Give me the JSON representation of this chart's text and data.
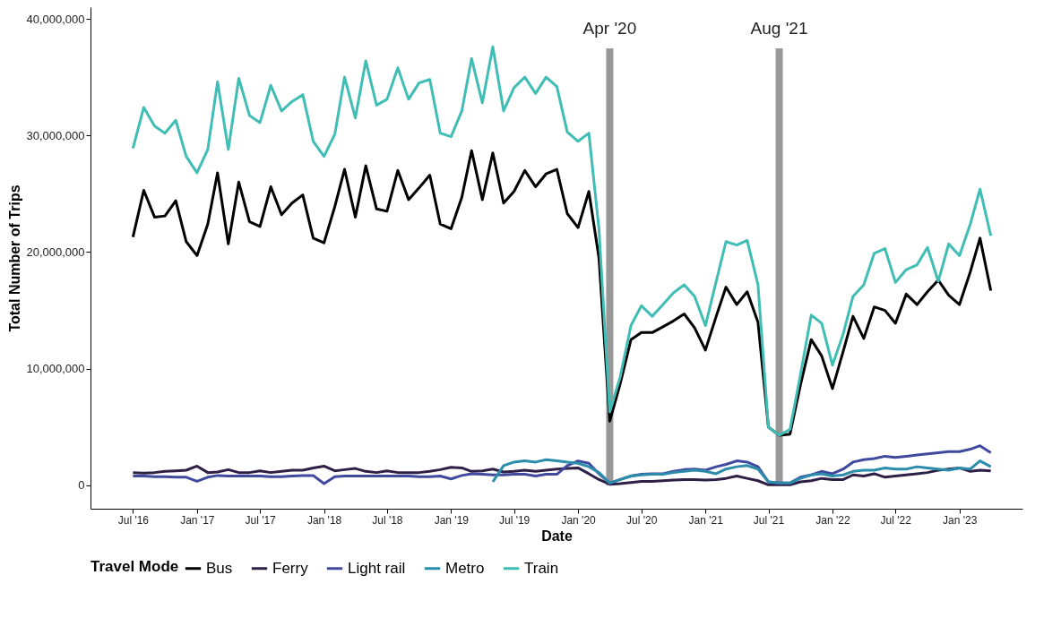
{
  "chart_data": {
    "type": "line",
    "xlabel": "Date",
    "ylabel": "Total Number of Trips",
    "legend_title": "Travel Mode",
    "legend": "bottom",
    "grid": false,
    "x": [
      "2016-07",
      "2016-08",
      "2016-09",
      "2016-10",
      "2016-11",
      "2016-12",
      "2017-01",
      "2017-02",
      "2017-03",
      "2017-04",
      "2017-05",
      "2017-06",
      "2017-07",
      "2017-08",
      "2017-09",
      "2017-10",
      "2017-11",
      "2017-12",
      "2018-01",
      "2018-02",
      "2018-03",
      "2018-04",
      "2018-05",
      "2018-06",
      "2018-07",
      "2018-08",
      "2018-09",
      "2018-10",
      "2018-11",
      "2018-12",
      "2019-01",
      "2019-02",
      "2019-03",
      "2019-04",
      "2019-05",
      "2019-06",
      "2019-07",
      "2019-08",
      "2019-09",
      "2019-10",
      "2019-11",
      "2019-12",
      "2020-01",
      "2020-02",
      "2020-03",
      "2020-04",
      "2020-05",
      "2020-06",
      "2020-07",
      "2020-08",
      "2020-09",
      "2020-10",
      "2020-11",
      "2020-12",
      "2021-01",
      "2021-02",
      "2021-03",
      "2021-04",
      "2021-05",
      "2021-06",
      "2021-07",
      "2021-08",
      "2021-09",
      "2021-10",
      "2021-11",
      "2021-12",
      "2022-01",
      "2022-02",
      "2022-03",
      "2022-04",
      "2022-05",
      "2022-06",
      "2022-07",
      "2022-08",
      "2022-09",
      "2022-10",
      "2022-11",
      "2022-12",
      "2023-01",
      "2023-02",
      "2023-03",
      "2023-04"
    ],
    "xlim": [
      "2016-03",
      "2023-07"
    ],
    "xticks": [
      {
        "value": "2016-07",
        "label": "Jul '16"
      },
      {
        "value": "2017-01",
        "label": "Jan '17"
      },
      {
        "value": "2017-07",
        "label": "Jul '17"
      },
      {
        "value": "2018-01",
        "label": "Jan '18"
      },
      {
        "value": "2018-07",
        "label": "Jul '18"
      },
      {
        "value": "2019-01",
        "label": "Jan '19"
      },
      {
        "value": "2019-07",
        "label": "Jul '19"
      },
      {
        "value": "2020-01",
        "label": "Jan '20"
      },
      {
        "value": "2020-07",
        "label": "Jul '20"
      },
      {
        "value": "2021-01",
        "label": "Jan '21"
      },
      {
        "value": "2021-07",
        "label": "Jul '21"
      },
      {
        "value": "2022-01",
        "label": "Jan '22"
      },
      {
        "value": "2022-07",
        "label": "Jul '22"
      },
      {
        "value": "2023-01",
        "label": "Jan '23"
      }
    ],
    "ylim": [
      -2000000,
      41000000
    ],
    "yticks": [
      {
        "value": 0,
        "label": "0"
      },
      {
        "value": 10000000,
        "label": "10,000,000"
      },
      {
        "value": 20000000,
        "label": "20,000,000"
      },
      {
        "value": 30000000,
        "label": "30,000,000"
      },
      {
        "value": 40000000,
        "label": "40,000,000"
      }
    ],
    "ref_lines": [
      {
        "axis": "x",
        "value": "2020-04",
        "label": "Apr '20",
        "color": "#999999"
      },
      {
        "axis": "x",
        "value": "2021-08",
        "label": "Aug '21",
        "color": "#999999"
      }
    ],
    "series": [
      {
        "name": "Bus",
        "color": "#000000",
        "values": [
          21300000.0,
          25300000.0,
          23000000.0,
          23100000.0,
          24400000.0,
          20900000.0,
          19700000.0,
          22400000.0,
          26800000.0,
          20700000.0,
          26000000.0,
          22600000.0,
          22200000.0,
          25600000.0,
          23200000.0,
          24200000.0,
          24900000.0,
          21200000.0,
          20800000.0,
          23900000.0,
          27100000.0,
          23000000.0,
          27400000.0,
          23700000.0,
          23500000.0,
          27000000.0,
          24500000.0,
          25500000.0,
          26600000.0,
          22400000.0,
          22000000.0,
          24700000.0,
          28700000.0,
          24500000.0,
          28500000.0,
          24200000.0,
          25200000.0,
          27000000.0,
          25600000.0,
          26700000.0,
          27100000.0,
          23300000.0,
          22100000.0,
          25200000.0,
          19500000.0,
          5500000.0,
          8700000.0,
          12500000.0,
          13100000.0,
          13100000.0,
          13600000.0,
          14100000.0,
          14700000.0,
          13500000.0,
          11600000.0,
          14500000.0,
          17000000.0,
          15500000.0,
          16600000.0,
          14000000.0,
          5000000.0,
          4300000.0,
          4400000.0,
          8600000.0,
          12500000.0,
          11100000.0,
          8300000.0,
          11500000.0,
          14500000.0,
          12600000.0,
          15300000.0,
          15000000.0,
          13900000.0,
          16400000.0,
          15500000.0,
          16600000.0,
          17600000.0,
          16300000.0,
          15500000.0,
          18300000.0,
          21200000.0,
          16700000.0
        ]
      },
      {
        "name": "Ferry",
        "color": "#2e1f47",
        "values": [
          1100000.0,
          1050000.0,
          1100000.0,
          1200000.0,
          1250000.0,
          1300000.0,
          1650000.0,
          1100000.0,
          1150000.0,
          1350000.0,
          1100000.0,
          1100000.0,
          1250000.0,
          1100000.0,
          1200000.0,
          1300000.0,
          1300000.0,
          1500000.0,
          1650000.0,
          1250000.0,
          1350000.0,
          1450000.0,
          1200000.0,
          1100000.0,
          1250000.0,
          1100000.0,
          1100000.0,
          1100000.0,
          1200000.0,
          1350000.0,
          1550000.0,
          1500000.0,
          1200000.0,
          1250000.0,
          1400000.0,
          1150000.0,
          1200000.0,
          1300000.0,
          1200000.0,
          1300000.0,
          1400000.0,
          1450000.0,
          1500000.0,
          1000000.0,
          500000.0,
          100000.0,
          150000.0,
          250000.0,
          350000.0,
          350000.0,
          400000.0,
          450000.0,
          500000.0,
          500000.0,
          450000.0,
          500000.0,
          600000.0,
          800000.0,
          600000.0,
          400000.0,
          50000.0,
          50000.0,
          50000.0,
          300000.0,
          400000.0,
          600000.0,
          500000.0,
          500000.0,
          900000.0,
          800000.0,
          1000000.0,
          700000.0,
          800000.0,
          900000.0,
          1000000.0,
          1100000.0,
          1300000.0,
          1400000.0,
          1500000.0,
          1200000.0,
          1300000.0,
          1250000.0
        ]
      },
      {
        "name": "Light rail",
        "color": "#3f4a9e",
        "values": [
          800000.0,
          800000.0,
          750000.0,
          750000.0,
          700000.0,
          700000.0,
          350000.0,
          700000.0,
          850000.0,
          800000.0,
          800000.0,
          800000.0,
          800000.0,
          750000.0,
          750000.0,
          800000.0,
          850000.0,
          850000.0,
          150000.0,
          750000.0,
          800000.0,
          800000.0,
          800000.0,
          800000.0,
          800000.0,
          800000.0,
          800000.0,
          750000.0,
          750000.0,
          800000.0,
          550000.0,
          850000.0,
          1000000.0,
          950000.0,
          900000.0,
          900000.0,
          950000.0,
          950000.0,
          800000.0,
          950000.0,
          950000.0,
          1700000.0,
          2100000.0,
          1900000.0,
          1000000.0,
          200000.0,
          500000.0,
          800000.0,
          950000.0,
          1000000.0,
          1000000.0,
          1200000.0,
          1350000.0,
          1400000.0,
          1300000.0,
          1600000.0,
          1800000.0,
          2100000.0,
          2000000.0,
          1600000.0,
          300000.0,
          200000.0,
          200000.0,
          700000.0,
          900000.0,
          1200000.0,
          1000000.0,
          1400000.0,
          2000000.0,
          2200000.0,
          2300000.0,
          2500000.0,
          2400000.0,
          2500000.0,
          2600000.0,
          2700000.0,
          2800000.0,
          2900000.0,
          2900000.0,
          3100000.0,
          3400000.0,
          2800000.0
        ]
      },
      {
        "name": "Metro",
        "color": "#2b8cab",
        "x": [
          "2019-05",
          "2019-06",
          "2019-07",
          "2019-08",
          "2019-09",
          "2019-10",
          "2019-11",
          "2019-12",
          "2020-01",
          "2020-02",
          "2020-03",
          "2020-04",
          "2020-05",
          "2020-06",
          "2020-07",
          "2020-08",
          "2020-09",
          "2020-10",
          "2020-11",
          "2020-12",
          "2021-01",
          "2021-02",
          "2021-03",
          "2021-04",
          "2021-05",
          "2021-06",
          "2021-07",
          "2021-08",
          "2021-09",
          "2021-10",
          "2021-11",
          "2021-12",
          "2022-01",
          "2022-02",
          "2022-03",
          "2022-04",
          "2022-05",
          "2022-06",
          "2022-07",
          "2022-08",
          "2022-09",
          "2022-10",
          "2022-11",
          "2022-12",
          "2023-01",
          "2023-02",
          "2023-03",
          "2023-04"
        ],
        "values": [
          300000.0,
          1700000.0,
          2000000.0,
          2100000.0,
          2000000.0,
          2200000.0,
          2100000.0,
          2000000.0,
          1900000.0,
          1600000.0,
          1100000.0,
          200000.0,
          500000.0,
          800000.0,
          900000.0,
          950000.0,
          950000.0,
          1100000.0,
          1200000.0,
          1300000.0,
          1200000.0,
          1000000.0,
          1400000.0,
          1600000.0,
          1700000.0,
          1400000.0,
          300000.0,
          200000.0,
          200000.0,
          600000.0,
          900000.0,
          1000000.0,
          800000.0,
          900000.0,
          1200000.0,
          1300000.0,
          1300000.0,
          1500000.0,
          1400000.0,
          1400000.0,
          1600000.0,
          1500000.0,
          1400000.0,
          1300000.0,
          1500000.0,
          1400000.0,
          2100000.0,
          1600000.0
        ]
      },
      {
        "name": "Train",
        "color": "#40bdb5",
        "values": [
          28900000.0,
          32400000.0,
          30800000.0,
          30200000.0,
          31300000.0,
          28200000.0,
          26800000.0,
          28800000.0,
          34600000.0,
          28800000.0,
          34900000.0,
          31700000.0,
          31100000.0,
          34300000.0,
          32100000.0,
          32900000.0,
          33500000.0,
          29500000.0,
          28200000.0,
          30100000.0,
          35000000.0,
          31500000.0,
          36400000.0,
          32600000.0,
          33100000.0,
          35800000.0,
          33100000.0,
          34500000.0,
          34800000.0,
          30200000.0,
          29900000.0,
          32100000.0,
          36600000.0,
          32800000.0,
          37600000.0,
          32100000.0,
          34100000.0,
          35000000.0,
          33600000.0,
          35000000.0,
          34200000.0,
          30300000.0,
          29500000.0,
          30200000.0,
          22000000.0,
          6300000.0,
          9300000.0,
          13700000.0,
          15400000.0,
          14500000.0,
          15500000.0,
          16500000.0,
          17200000.0,
          16200000.0,
          13700000.0,
          17500000.0,
          20900000.0,
          20600000.0,
          21000000.0,
          17200000.0,
          5000000.0,
          4300000.0,
          4800000.0,
          9500000.0,
          14600000.0,
          13900000.0,
          10300000.0,
          13000000.0,
          16200000.0,
          17200000.0,
          19900000.0,
          20300000.0,
          17400000.0,
          18500000.0,
          18900000.0,
          20400000.0,
          17500000.0,
          20700000.0,
          19700000.0,
          22400000.0,
          25400000.0,
          21400000.0
        ]
      }
    ]
  }
}
